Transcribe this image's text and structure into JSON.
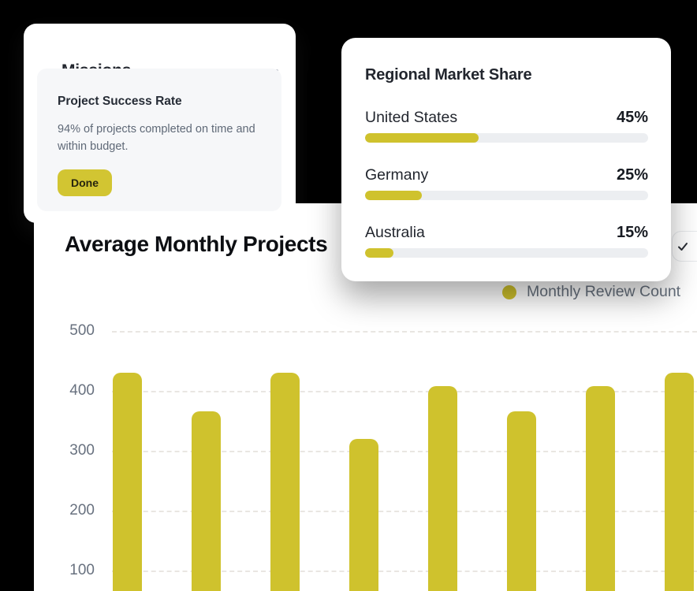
{
  "colors": {
    "background": "#000000",
    "panel": "#ffffff",
    "accent": "#cfc22d",
    "button_accent": "#d2c532",
    "track": "#eceef1",
    "grid": "#e9e6e2",
    "text_dark": "#22262e",
    "text_gray": "#5f6977",
    "axis_gray": "#68717f"
  },
  "missions_card": {
    "title": "Missions",
    "menu_icon": "ellipsis-icon",
    "inner": {
      "heading": "Project Success Rate",
      "body": "94% of projects completed on time and within budget.",
      "button_label": "Done"
    }
  },
  "market_share_card": {
    "title": "Regional Market Share",
    "rows": [
      {
        "label": "United States",
        "value_label": "45%",
        "value": 45,
        "fill_percent": 40
      },
      {
        "label": "Germany",
        "value_label": "25%",
        "value": 25,
        "fill_percent": 20
      },
      {
        "label": "Australia",
        "value_label": "15%",
        "value": 15,
        "fill_percent": 10
      }
    ]
  },
  "chart_panel": {
    "title": "Average Monthly Projects",
    "check_button_icon": "check-icon",
    "legend": {
      "label": "Monthly Review Count",
      "color": "#cfc22d"
    }
  },
  "chart_data": {
    "type": "bar",
    "title": "Average Monthly Projects",
    "values": [
      430,
      365,
      430,
      320,
      408,
      365,
      408,
      430
    ],
    "y_ticks": [
      500,
      400,
      300,
      200,
      100
    ],
    "ylim": [
      0,
      500
    ],
    "grid": "dashed-horizontal",
    "legend": [
      "Monthly Review Count"
    ],
    "bar_color": "#cfc22d",
    "note": "x-axis category labels cut off below viewport"
  }
}
